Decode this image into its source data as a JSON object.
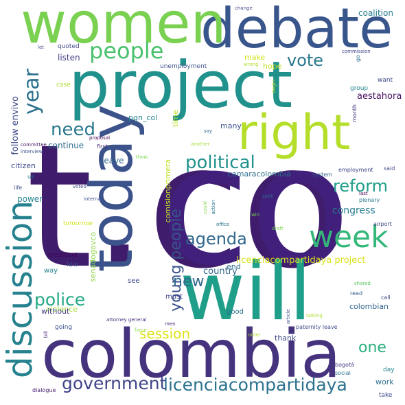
{
  "words": [
    {
      "text": "t.co",
      "color": "#3f1c6c"
    },
    {
      "text": "co",
      "color": "#40207a"
    },
    {
      "text": "project",
      "color": "#21918c"
    },
    {
      "text": "will",
      "color": "#1f9e89"
    },
    {
      "text": "colombia",
      "color": "#46337e"
    },
    {
      "text": "today",
      "color": "#3b528b"
    },
    {
      "text": "debate",
      "color": "#39568c"
    },
    {
      "text": "women",
      "color": "#7ad151"
    },
    {
      "text": "right",
      "color": "#b5de2b"
    },
    {
      "text": "discussion",
      "color": "#26828e"
    },
    {
      "text": "week",
      "color": "#35b779"
    },
    {
      "text": "people",
      "color": "#4ac16d"
    },
    {
      "text": "year",
      "color": "#2c728e"
    },
    {
      "text": "political",
      "color": "#21918c"
    },
    {
      "text": "reform",
      "color": "#1f9e89"
    },
    {
      "text": "licenciacompartidaya",
      "color": "#2c728e"
    },
    {
      "text": "government",
      "color": "#404688"
    },
    {
      "text": "police",
      "color": "#22a884"
    },
    {
      "text": "young people",
      "color": "#3b528b"
    },
    {
      "text": "agenda",
      "color": "#31688e"
    },
    {
      "text": "need",
      "color": "#2a788e"
    },
    {
      "text": "vote",
      "color": "#2a788e"
    },
    {
      "text": "session",
      "color": "#dde318"
    },
    {
      "text": "one",
      "color": "#2ab07f"
    },
    {
      "text": "new",
      "color": "#31688e"
    },
    {
      "text": "licenciacompartidaya project",
      "color": "#d8e219"
    },
    {
      "text": "congress",
      "color": "#287c8e"
    },
    {
      "text": "senadogovco",
      "color": "#8bd646"
    },
    {
      "text": "comisionprimera",
      "color": "#c2df23"
    },
    {
      "text": "coalition",
      "color": "#287c8e"
    },
    {
      "text": "follow envivo",
      "color": "#3e4989"
    },
    {
      "text": "country",
      "color": "#31688e"
    },
    {
      "text": "camaracolombia",
      "color": "#2e6e8e"
    },
    {
      "text": "leave",
      "color": "#32658e"
    },
    {
      "text": "continue",
      "color": "#2e6e8e"
    },
    {
      "text": "citizen",
      "color": "#3e4989"
    },
    {
      "text": "power",
      "color": "#25848e"
    },
    {
      "text": "aestahora",
      "color": "#471063"
    },
    {
      "text": "colombian",
      "color": "#32658e"
    },
    {
      "text": "listen",
      "color": "#433e85"
    },
    {
      "text": "make",
      "color": "#d2e21b"
    },
    {
      "text": "hope",
      "color": "#c0df25"
    },
    {
      "text": "unemployment",
      "color": "#3b528b"
    },
    {
      "text": "quoted",
      "color": "#3f4788"
    },
    {
      "text": "pgn_col",
      "color": "#25858e"
    },
    {
      "text": "many",
      "color": "#3b528b"
    },
    {
      "text": "time",
      "color": "#bddf26"
    },
    {
      "text": "want",
      "color": "#3f4788"
    },
    {
      "text": "group",
      "color": "#25848e"
    },
    {
      "text": "month",
      "color": "#46327e"
    },
    {
      "text": "case",
      "color": "#addc30"
    },
    {
      "text": "violence",
      "color": "#a5db36"
    },
    {
      "text": "without",
      "color": "#424086"
    },
    {
      "text": "way",
      "color": "#26828e"
    },
    {
      "text": "law",
      "color": "#3c4f8a"
    },
    {
      "text": "president",
      "color": "#440154"
    },
    {
      "text": "tomorrow",
      "color": "#d0e11c"
    },
    {
      "text": "see",
      "color": "#3e4989"
    },
    {
      "text": "end",
      "color": "#2e6e8e"
    },
    {
      "text": "must",
      "color": "#404688"
    },
    {
      "text": "good",
      "color": "#2d708e"
    },
    {
      "text": "thank",
      "color": "#3e4989"
    },
    {
      "text": "going",
      "color": "#3a538b"
    },
    {
      "text": "work",
      "color": "#2d708e"
    },
    {
      "text": "day",
      "color": "#25848e"
    },
    {
      "text": "take",
      "color": "#3f4788"
    },
    {
      "text": "social",
      "color": "#2c728e"
    },
    {
      "text": "bogotá",
      "color": "#443a83"
    },
    {
      "text": "dialogue",
      "color": "#482374"
    },
    {
      "text": "attorney general",
      "color": "#472c7a"
    },
    {
      "text": "men",
      "color": "#482677"
    },
    {
      "text": "force",
      "color": "#8fd744"
    },
    {
      "text": "paternity leave",
      "color": "#3e4c8a"
    },
    {
      "text": "order",
      "color": "#b0dd2f"
    },
    {
      "text": "talking",
      "color": "#addc30"
    },
    {
      "text": "read",
      "color": "#33638d"
    },
    {
      "text": "call",
      "color": "#3e4989"
    },
    {
      "text": "shared",
      "color": "#5ec962"
    },
    {
      "text": "article",
      "color": "#3b528b"
    },
    {
      "text": "airport",
      "color": "#3f4788"
    },
    {
      "text": "plenary",
      "color": "#2a788e"
    },
    {
      "text": "last",
      "color": "#440154"
    },
    {
      "text": "employment",
      "color": "#404688"
    },
    {
      "text": "said",
      "color": "#3e4c8a"
    },
    {
      "text": "system",
      "color": "#35608d"
    },
    {
      "text": "seek",
      "color": "#31688e"
    },
    {
      "text": "action",
      "color": "#2a788e"
    },
    {
      "text": "could",
      "color": "#84d44b"
    },
    {
      "text": "win",
      "color": "#75d054"
    },
    {
      "text": "office",
      "color": "#2c728e"
    },
    {
      "text": "draft",
      "color": "#7ad151"
    },
    {
      "text": "internal",
      "color": "#3b528b"
    },
    {
      "text": "voted",
      "color": "#3f4788"
    },
    {
      "text": "us",
      "color": "#25848e"
    },
    {
      "text": "life",
      "color": "#3b528b"
    },
    {
      "text": "think",
      "color": "#7fd34e"
    },
    {
      "text": "first",
      "color": "#482878"
    },
    {
      "text": "proposal",
      "color": "#440154"
    },
    {
      "text": "another",
      "color": "#a8db34"
    },
    {
      "text": "say",
      "color": "#31688e"
    },
    {
      "text": "committee",
      "color": "#471365"
    },
    {
      "text": "interview",
      "color": "#3b528b"
    },
    {
      "text": "let",
      "color": "#3f4788"
    },
    {
      "text": "change",
      "color": "#3e4989"
    },
    {
      "text": "wrong",
      "color": "#b5de2b"
    },
    {
      "text": "commission",
      "color": "#3f4788"
    },
    {
      "text": "begin",
      "color": "#bddf26"
    },
    {
      "text": "go",
      "color": "#2d708e"
    },
    {
      "text": "bill",
      "color": "#482374"
    }
  ]
}
